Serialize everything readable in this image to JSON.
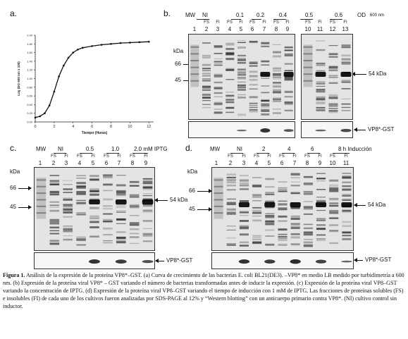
{
  "panel_a": {
    "letter": "a.",
    "ylabel": "Log (DO 600 nm x 100)",
    "xlabel": "Tiempo (Horas)",
    "chart_data": {
      "type": "line",
      "x": [
        0,
        0.5,
        1,
        1.5,
        2,
        2.5,
        3,
        3.5,
        4,
        4.5,
        5,
        6,
        7,
        8,
        9,
        10,
        11,
        12
      ],
      "values": [
        0.1,
        0.13,
        0.2,
        0.38,
        0.7,
        1.05,
        1.3,
        1.48,
        1.6,
        1.67,
        1.71,
        1.75,
        1.78,
        1.8,
        1.82,
        1.83,
        1.84,
        1.85
      ],
      "xlim": [
        0,
        12.5
      ],
      "ylim": [
        0,
        2.0
      ],
      "xticks": [
        "0",
        "2",
        "4",
        "6",
        "8",
        "10",
        "12"
      ],
      "yticks": [
        "0.00",
        "0.20",
        "0.40",
        "0.60",
        "0.80",
        "1.00",
        "1.20",
        "1.40",
        "1.60",
        "1.80",
        "2.00"
      ],
      "xlabel": "Tiempo (Horas)",
      "ylabel": "Log (DO 600 nm x 100)"
    }
  },
  "panel_b": {
    "letter": "b.",
    "headers": [
      "MW",
      "NI",
      "0.1",
      "0.2",
      "0.4",
      "0.5",
      "0.6",
      "OD"
    ],
    "od_unit": "600 nm",
    "subs": [
      "FS",
      "FI",
      "FS",
      "FI",
      "FS",
      "FI",
      "FS",
      "FI",
      "FS",
      "FI",
      "FS",
      "FI"
    ],
    "lanes": [
      "1",
      "2",
      "3",
      "4",
      "5",
      "6",
      "7",
      "8",
      "9",
      "10",
      "11",
      "12",
      "13"
    ],
    "kda": "kDa",
    "markers": [
      "66",
      "45"
    ],
    "band_label": "54 kDa",
    "wb_label": "VP8*-GST"
  },
  "panel_c": {
    "letter": "c.",
    "headers": [
      "MW",
      "NI",
      "0.5",
      "1.0",
      "2.0 mM IPTG"
    ],
    "subs": [
      "FS",
      "FI",
      "FS",
      "FI",
      "FS",
      "FI",
      "FS",
      "FI"
    ],
    "lanes": [
      "1",
      "2",
      "3",
      "4",
      "5",
      "6",
      "7",
      "8",
      "9"
    ],
    "kda": "kDa",
    "markers": [
      "66",
      "45"
    ],
    "band_label": "54 kDa",
    "wb_label": "VP8*-GST"
  },
  "panel_d": {
    "letter": "d.",
    "headers": [
      "MW",
      "NI",
      "2",
      "4",
      "6",
      "8 h Inducción"
    ],
    "subs": [
      "FS",
      "FI",
      "FS",
      "FI",
      "FS",
      "FI",
      "FS",
      "FI",
      "FS",
      "FI"
    ],
    "lanes": [
      "1",
      "2",
      "3",
      "4",
      "5",
      "6",
      "7",
      "8",
      "9",
      "10",
      "11"
    ],
    "kda": "kDa",
    "markers": [
      "66",
      "45"
    ],
    "band_label": "54 kDa",
    "wb_label": "VP8*-GST"
  },
  "caption": {
    "lead": "Figura 1.",
    "text": " Análisis de la expresión de la proteína VP8*–GST. (a) Curva de crecimiento de las bacterias E. coli BL21(DE3). –VP8* en medio LB medido por turbidimetría a 600 nm. (b) Expresión de la proteína viral VP8* – GST variando el número de bacterias transformadas antes de inducir la expresión. (c) Expresión de la proteína viral VP8–GST variando la concentración de IPTG. (d) Expresión de la proteína viral VP8–GST variando el tiempo de inducción con 1 mM de IPTG. Las fracciones de proteínas solubles (FS) e insolubles (FI) de cada uno de los cultivos fueron analizadas por SDS-PAGE al 12% y “Western blotting” con un anticuerpo primario contra VP8*. (NI) cultivo control sin inductor."
  }
}
